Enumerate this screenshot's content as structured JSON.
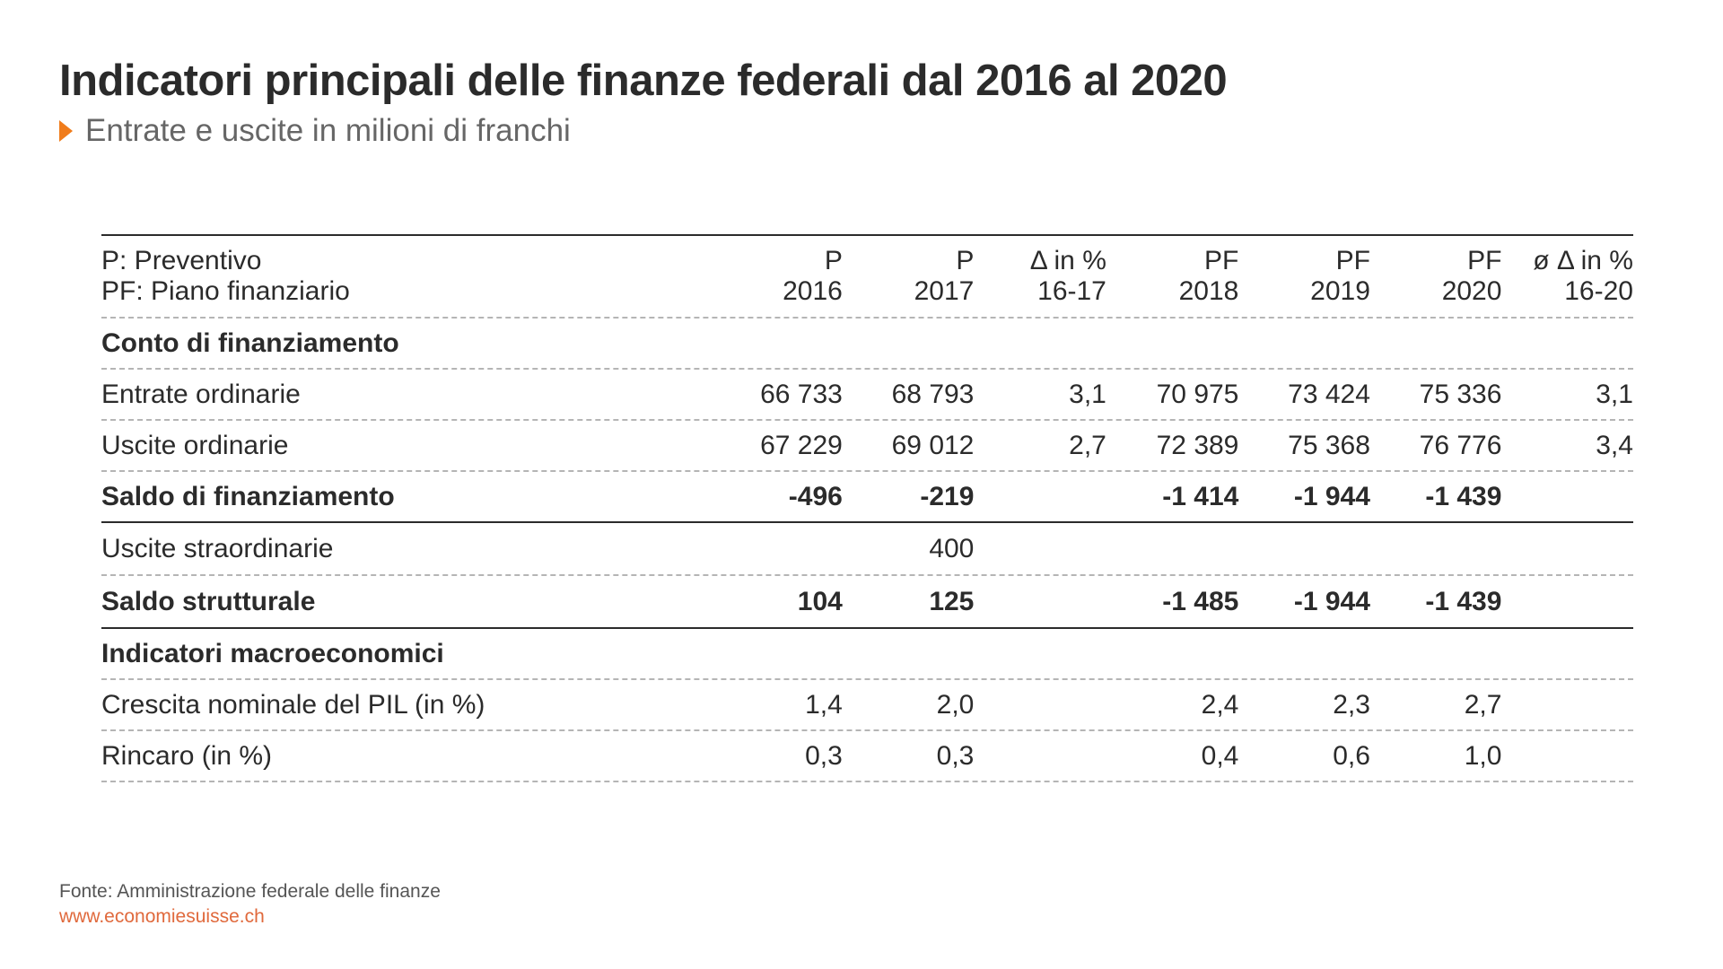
{
  "title": "Indicatori principali delle finanze federali dal 2016 al 2020",
  "subtitle": "Entrate e uscite in milioni di franchi",
  "accent_color": "#f07c1b",
  "chart_data": {
    "type": "table",
    "header": {
      "legend_line1": "P: Preventivo",
      "legend_line2": "PF: Piano finanziario",
      "columns": [
        {
          "line1": "P",
          "line2": "2016"
        },
        {
          "line1": "P",
          "line2": "2017"
        },
        {
          "line1": "Δ in %",
          "line2": "16-17"
        },
        {
          "line1": "PF",
          "line2": "2018"
        },
        {
          "line1": "PF",
          "line2": "2019"
        },
        {
          "line1": "PF",
          "line2": "2020"
        },
        {
          "line1": "ø Δ in %",
          "line2": "16-20"
        }
      ]
    },
    "rows": [
      {
        "label": "Conto di finanziamento",
        "bold": true,
        "values": [
          "",
          "",
          "",
          "",
          "",
          "",
          ""
        ]
      },
      {
        "label": "Entrate ordinarie",
        "bold": false,
        "values": [
          "66 733",
          "68 793",
          "3,1",
          "70 975",
          "73 424",
          "75 336",
          "3,1"
        ]
      },
      {
        "label": "Uscite ordinarie",
        "bold": false,
        "values": [
          "67 229",
          "69 012",
          "2,7",
          "72 389",
          "75 368",
          "76 776",
          "3,4"
        ]
      },
      {
        "label": "Saldo di finanziamento",
        "bold": true,
        "values": [
          "-496",
          "-219",
          "",
          "-1 414",
          "-1 944",
          "-1 439",
          ""
        ]
      },
      {
        "label": "Uscite straordinarie",
        "bold": false,
        "values": [
          "",
          "400",
          "",
          "",
          "",
          "",
          ""
        ]
      },
      {
        "label": "Saldo strutturale",
        "bold": true,
        "values": [
          "104",
          "125",
          "",
          "-1 485",
          "-1 944",
          "-1 439",
          ""
        ]
      },
      {
        "label": "Indicatori macroeconomici",
        "bold": true,
        "values": [
          "",
          "",
          "",
          "",
          "",
          "",
          ""
        ]
      },
      {
        "label": "Crescita nominale del PIL (in %)",
        "bold": false,
        "values": [
          "1,4",
          "2,0",
          "",
          "2,4",
          "2,3",
          "2,7",
          ""
        ]
      },
      {
        "label": "Rincaro (in %)",
        "bold": false,
        "values": [
          "0,3",
          "0,3",
          "",
          "0,4",
          "0,6",
          "1,0",
          ""
        ]
      }
    ]
  },
  "footer": {
    "source": "Fonte: Amministrazione federale delle finanze",
    "website": "www.economiesuisse.ch"
  }
}
